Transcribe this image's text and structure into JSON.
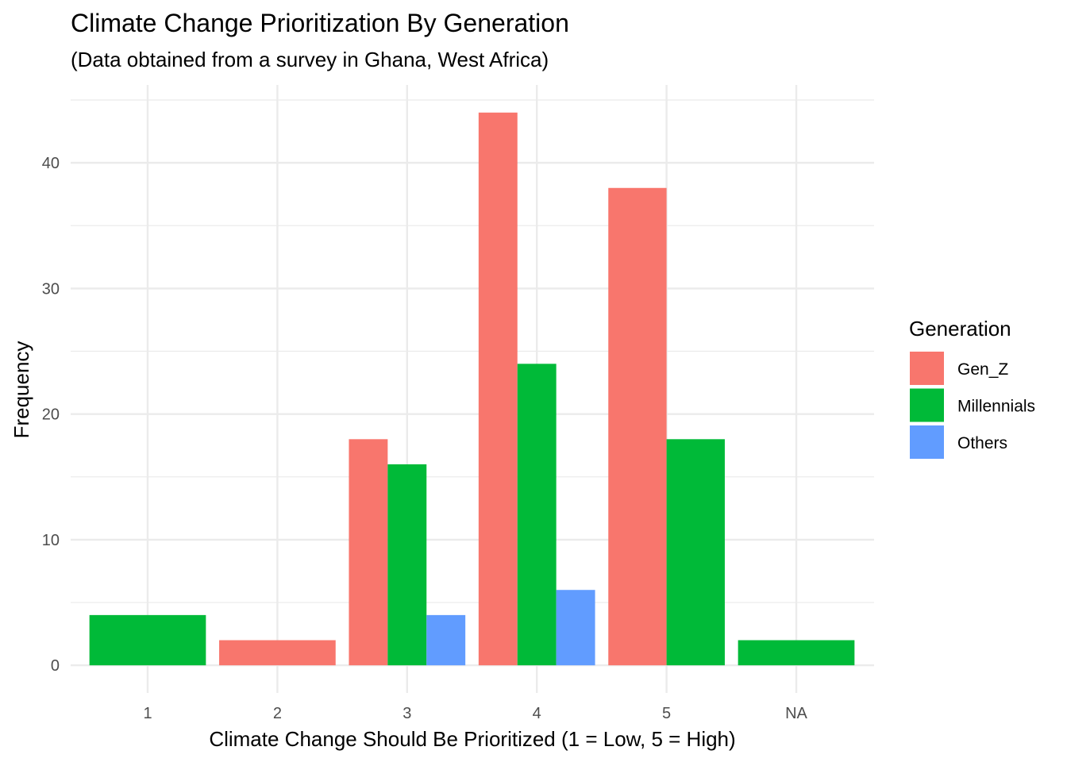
{
  "chart_data": {
    "type": "bar",
    "title": "Climate Change Prioritization By Generation",
    "subtitle": "(Data obtained from a survey in Ghana, West Africa)",
    "xlabel": "Climate Change Should Be Prioritized (1 = Low, 5 = High)",
    "ylabel": "Frequency",
    "categories": [
      "1",
      "2",
      "3",
      "4",
      "5",
      "NA"
    ],
    "ylim": [
      -2.2,
      46.2
    ],
    "yticks": [
      0,
      10,
      20,
      30,
      40
    ],
    "grid": true,
    "bar_position": "dodge (empty groups dropped per category)",
    "legend": {
      "title": "Generation",
      "placement": "right"
    },
    "series": [
      {
        "name": "Gen_Z",
        "color": "#F8766D",
        "values": [
          null,
          2,
          18,
          44,
          38,
          null
        ]
      },
      {
        "name": "Millennials",
        "color": "#00BA38",
        "values": [
          4,
          null,
          16,
          24,
          18,
          2
        ]
      },
      {
        "name": "Others",
        "color": "#619CFF",
        "values": [
          null,
          null,
          4,
          6,
          null,
          null
        ]
      }
    ]
  }
}
